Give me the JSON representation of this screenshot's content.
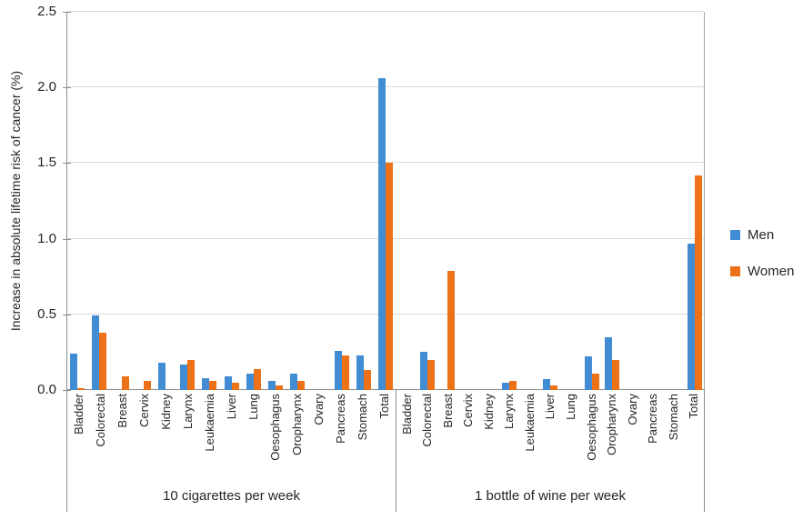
{
  "chart_data": {
    "type": "bar",
    "title": "",
    "ylabel": "Increase in absolute lifetime risk of cancer (%)",
    "xlabel": "",
    "ylim": [
      0,
      2.5
    ],
    "yticks": [
      0,
      0.5,
      1,
      1.5,
      2,
      2.5
    ],
    "grid": "horizontal",
    "legend_position": "right",
    "legend": [
      "Men",
      "Women"
    ],
    "colors": {
      "men": "#418cd2",
      "women": "#ed7117",
      "gridline": "#d9d9d9",
      "axis": "#8c8c8c",
      "text": "#262626"
    },
    "categories": [
      "Bladder",
      "Colorectal",
      "Breast",
      "Cervix",
      "Kidney",
      "Larynx",
      "Leukaemia",
      "Liver",
      "Lung",
      "Oesophagus",
      "Oropharynx",
      "Ovary",
      "Pancreas",
      "Stomach",
      "Total"
    ],
    "groups": [
      {
        "label": "10 cigarettes per week",
        "series": [
          {
            "name": "Men",
            "values": [
              0.24,
              0.49,
              0,
              0,
              0.18,
              0.17,
              0.08,
              0.09,
              0.11,
              0.06,
              0.11,
              0,
              0.26,
              0.23,
              2.06
            ]
          },
          {
            "name": "Women",
            "values": [
              0.01,
              0.38,
              0.09,
              0.06,
              0,
              0.2,
              0.06,
              0.05,
              0.14,
              0.03,
              0.06,
              0,
              0.23,
              0.13,
              1.5
            ]
          }
        ]
      },
      {
        "label": "1 bottle of wine per week",
        "series": [
          {
            "name": "Men",
            "values": [
              0,
              0.25,
              0,
              0,
              0,
              0.05,
              0,
              0.07,
              0,
              0.22,
              0.35,
              0,
              0,
              0,
              0.97
            ]
          },
          {
            "name": "Women",
            "values": [
              0,
              0.2,
              0.79,
              0,
              0,
              0.06,
              0,
              0.03,
              0,
              0.11,
              0.2,
              0,
              0,
              0,
              1.42
            ]
          }
        ]
      }
    ]
  }
}
